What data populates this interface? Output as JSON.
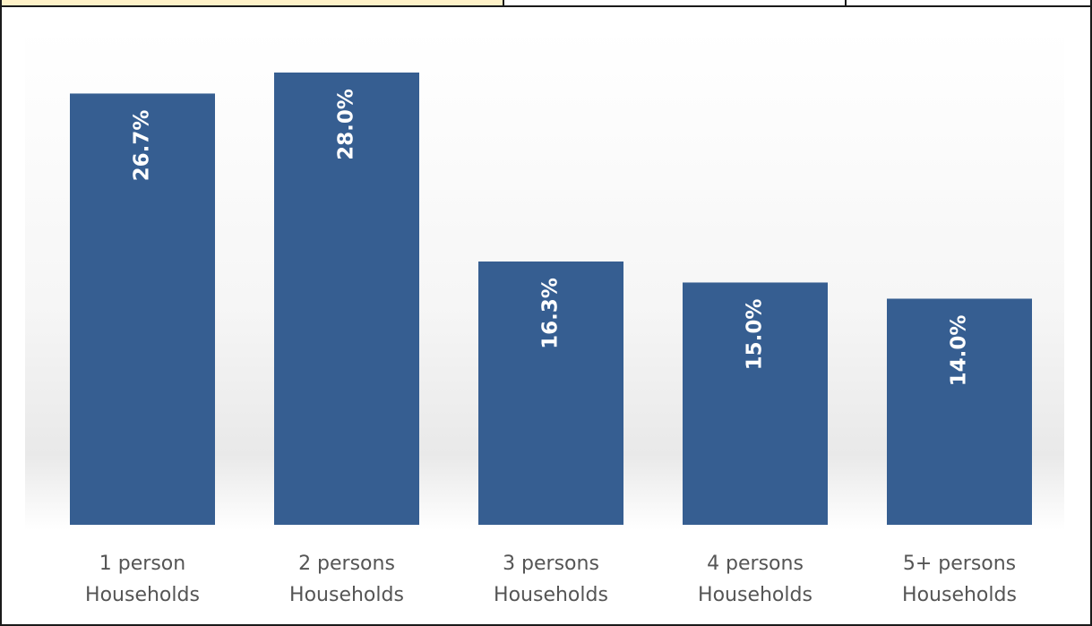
{
  "chart_data": {
    "type": "bar",
    "title": "",
    "xlabel": "",
    "ylabel": "",
    "categories": [
      [
        "1 person",
        "Households"
      ],
      [
        "2 persons",
        "Households"
      ],
      [
        "3 persons",
        "Households"
      ],
      [
        "4 persons",
        "Households"
      ],
      [
        "5+ persons",
        "Households"
      ]
    ],
    "values": [
      26.7,
      28.0,
      16.3,
      15.0,
      14.0
    ],
    "value_labels": [
      "26.7%",
      "28.0%",
      "16.3%",
      "15.0%",
      "14.0%"
    ],
    "ylim": [
      0,
      28.0
    ],
    "grid": false,
    "legend": "none",
    "bar_color": "#365e91",
    "label_color": "#ffffff",
    "category_label_color": "#555555"
  }
}
